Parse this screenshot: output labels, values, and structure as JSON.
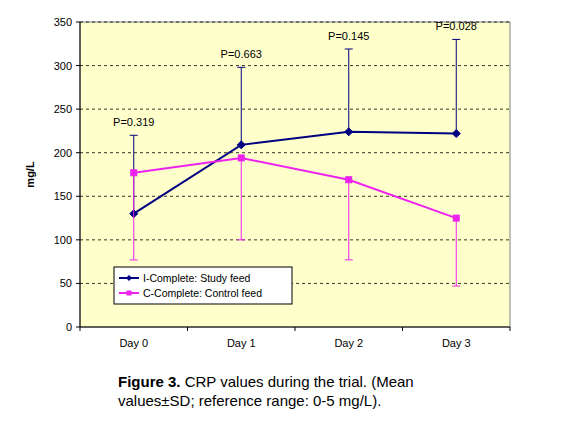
{
  "chart_data": {
    "type": "line",
    "title": "Figure 3.",
    "subtitle": "CRP values during the trial. (Mean values±SD; reference range: 0-5 mg/L).",
    "y_label": "mg/L",
    "categories": [
      "Day 0",
      "Day 1",
      "Day 2",
      "Day 3"
    ],
    "annotations": [
      "P=0.319",
      "P=0.663",
      "P=0.145",
      "P=0.028"
    ],
    "series": [
      {
        "name": "I-Complete: Study feed",
        "color": "#000080",
        "marker": "diamond",
        "line_style": "solid",
        "values": [
          130,
          209,
          224,
          222
        ],
        "error_plus": [
          90,
          89,
          95,
          108
        ]
      },
      {
        "name": "C-Complete: Control feed",
        "color": "#ee22ee",
        "marker": "square",
        "line_style": "solid",
        "values": [
          177,
          194,
          169,
          125
        ],
        "error_minus": [
          100,
          94,
          92,
          78
        ]
      }
    ],
    "ylim": [
      0,
      350
    ],
    "yticks": [
      0,
      50,
      100,
      150,
      200,
      250,
      300,
      350
    ],
    "grid": true,
    "legend": "lower left"
  }
}
